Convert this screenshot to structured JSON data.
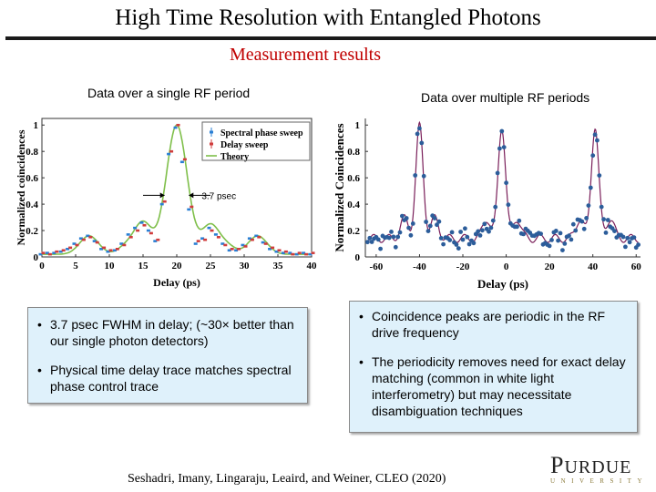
{
  "slide": {
    "title": "High Time Resolution with Entangled Photons",
    "subtitle": "Measurement results",
    "left_caption": "Data over a single RF period",
    "right_caption": "Data over multiple RF periods",
    "left_bullets": [
      "3.7 psec FWHM in delay; (~30× better than our single photon detectors)",
      "Physical time delay trace matches spectral phase control trace"
    ],
    "right_bullets": [
      "Coincidence peaks are periodic in the RF drive frequency",
      "The periodicity removes need for exact delay matching (common in white light interferometry) but may necessitate disambiguation techniques"
    ],
    "citation": "Seshadri, Imany, Lingaraju, Leaird, and Weiner,  CLEO (2020)",
    "logo_word": "PURDUE",
    "logo_sub": "UNIVERSITY"
  },
  "chart_data": [
    {
      "type": "scatter",
      "xlabel": "Delay (ps)",
      "ylabel": "Normalized coincidences",
      "xlim": [
        0,
        40
      ],
      "ylim": [
        0,
        1.05
      ],
      "xticks": [
        "0",
        "5",
        "10",
        "15",
        "20",
        "25",
        "30",
        "35",
        "40"
      ],
      "yticks": [
        "0",
        "0.2",
        "0.4",
        "0.6",
        "0.8",
        "1"
      ],
      "legend": [
        "Spectral phase sweep",
        "Delay sweep",
        "Theory"
      ],
      "legend_position": "top-right",
      "annotation": "3.7 psec",
      "colors": {
        "spectral": "#2a7fd4",
        "delay": "#d03c3c",
        "theory": "#7fbf4a"
      },
      "series": [
        {
          "name": "Spectral phase sweep",
          "x": [
            0,
            1,
            2,
            3,
            4,
            5,
            6,
            7,
            8,
            9,
            10,
            11,
            12,
            13,
            14,
            15,
            16,
            17,
            18,
            19,
            20,
            21,
            22,
            23,
            24,
            25,
            26,
            27,
            28,
            29,
            30,
            31,
            32,
            33,
            34,
            35,
            36,
            37,
            38,
            39,
            40
          ],
          "y": [
            0.02,
            0.03,
            0.03,
            0.04,
            0.06,
            0.1,
            0.14,
            0.16,
            0.12,
            0.06,
            0.04,
            0.05,
            0.1,
            0.17,
            0.22,
            0.26,
            0.2,
            0.12,
            0.4,
            0.78,
            0.98,
            0.72,
            0.36,
            0.1,
            0.14,
            0.22,
            0.17,
            0.1,
            0.05,
            0.05,
            0.09,
            0.14,
            0.16,
            0.11,
            0.06,
            0.04,
            0.03,
            0.03,
            0.02,
            0.03,
            0.02
          ]
        },
        {
          "name": "Delay sweep",
          "x": [
            0,
            1,
            2,
            3,
            4,
            5,
            6,
            7,
            8,
            9,
            10,
            11,
            12,
            13,
            14,
            15,
            16,
            17,
            18,
            19,
            20,
            21,
            22,
            23,
            24,
            25,
            26,
            27,
            28,
            29,
            30,
            31,
            32,
            33,
            34,
            35,
            36,
            37,
            38,
            39,
            40
          ],
          "y": [
            0.03,
            0.02,
            0.04,
            0.05,
            0.07,
            0.09,
            0.13,
            0.15,
            0.11,
            0.07,
            0.05,
            0.06,
            0.09,
            0.15,
            0.2,
            0.24,
            0.18,
            0.13,
            0.42,
            0.8,
            1.0,
            0.74,
            0.38,
            0.12,
            0.13,
            0.2,
            0.15,
            0.09,
            0.06,
            0.06,
            0.08,
            0.13,
            0.15,
            0.1,
            0.07,
            0.05,
            0.04,
            0.02,
            0.03,
            0.02,
            0.03
          ]
        }
      ]
    },
    {
      "type": "scatter",
      "xlabel": "Delay (ps)",
      "ylabel": "Normalized Coincidences",
      "xlim": [
        -65,
        62
      ],
      "ylim": [
        0,
        1.05
      ],
      "xticks": [
        "-60",
        "-40",
        "-20",
        "0",
        "20",
        "40",
        "60"
      ],
      "yticks": [
        "0",
        "0.2",
        "0.4",
        "0.6",
        "0.8",
        "1"
      ],
      "peak_centers": [
        -40,
        -2,
        41
      ],
      "colors": {
        "points": "#2c5d9a",
        "fit": "#7a1f5a"
      }
    }
  ]
}
